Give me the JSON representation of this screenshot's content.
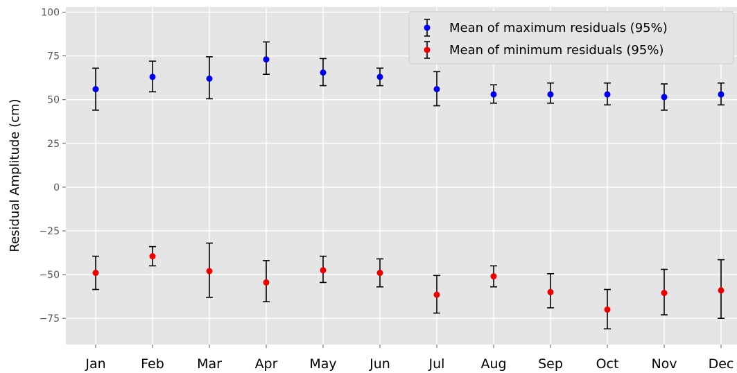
{
  "chart_data": {
    "type": "scatter",
    "ylabel": "Residual Amplitude (cm)",
    "xlabel": "",
    "title": "",
    "categories": [
      "Jan",
      "Feb",
      "Mar",
      "Apr",
      "May",
      "Jun",
      "Jul",
      "Aug",
      "Sep",
      "Oct",
      "Nov",
      "Dec"
    ],
    "ylim": [
      -90,
      103
    ],
    "yticks": [
      100,
      75,
      50,
      25,
      0,
      -25,
      -50,
      -75
    ],
    "grid": true,
    "legend_position": "top-right",
    "background": "#e5e5e5",
    "series": [
      {
        "name": "Mean of maximum residuals (95%)",
        "color": "#0000ee",
        "values": [
          56,
          63,
          62,
          73,
          65.5,
          63,
          56,
          53,
          53,
          53,
          51.5,
          53
        ],
        "err_low": [
          44,
          54.5,
          50.5,
          64.5,
          58,
          58,
          46.5,
          48,
          48,
          47,
          44,
          47
        ],
        "err_high": [
          68,
          72,
          74.5,
          83,
          73.5,
          68,
          66,
          58.5,
          59.5,
          59.5,
          59,
          59.5
        ]
      },
      {
        "name": "Mean of minimum residuals (95%)",
        "color": "#ee0000",
        "values": [
          -49,
          -39.5,
          -48,
          -54.5,
          -47.5,
          -49,
          -61.5,
          -51,
          -60,
          -70,
          -60.5,
          -59
        ],
        "err_low": [
          -58.5,
          -45,
          -63,
          -65.5,
          -54.5,
          -57,
          -72,
          -57,
          -69,
          -81,
          -73,
          -75
        ],
        "err_high": [
          -39.5,
          -34,
          -32,
          -42,
          -39.5,
          -41,
          -50.5,
          -45,
          -49.5,
          -58.5,
          -47,
          -41.5
        ]
      }
    ]
  }
}
